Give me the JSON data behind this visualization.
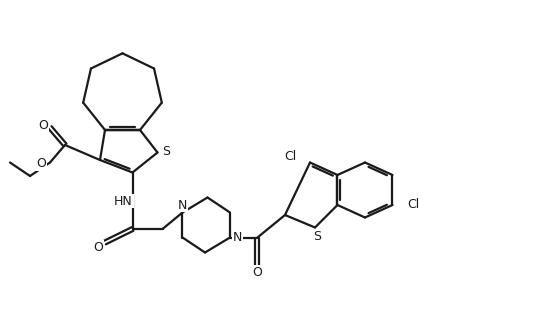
{
  "background_color": "#ffffff",
  "line_color": "#1a1a1a",
  "line_width": 1.6,
  "figsize": [
    5.46,
    3.2
  ],
  "dpi": 100,
  "xlim": [
    0,
    10.92
  ],
  "ylim": [
    0,
    6.4
  ]
}
